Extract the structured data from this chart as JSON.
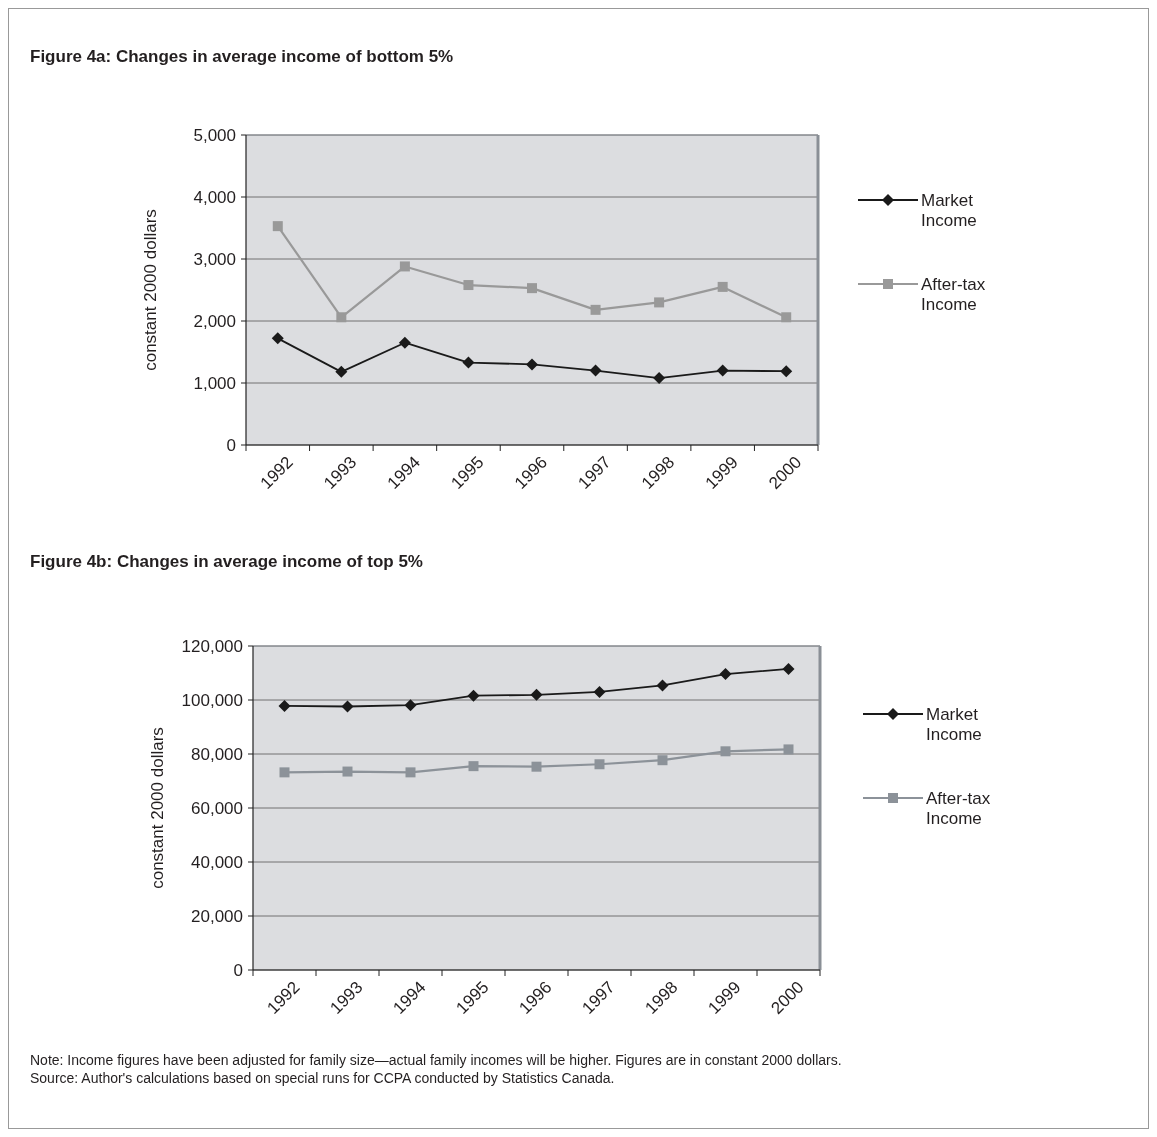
{
  "chart_data": [
    {
      "type": "line",
      "title": "Figure 4a: Changes in average income of bottom 5%",
      "ylabel": "constant 2000 dollars",
      "categories": [
        "1992",
        "1993",
        "1994",
        "1995",
        "1996",
        "1997",
        "1998",
        "1999",
        "2000"
      ],
      "series": [
        {
          "name": "Market Income",
          "color": "#1a1a1a",
          "marker": "diamond",
          "values": [
            1720,
            1180,
            1650,
            1330,
            1300,
            1200,
            1080,
            1200,
            1190
          ]
        },
        {
          "name": "After-tax Income",
          "color": "#999999",
          "marker": "square",
          "values": [
            3530,
            2060,
            2880,
            2580,
            2530,
            2180,
            2300,
            2550,
            2060
          ]
        }
      ],
      "ylim": [
        0,
        5000
      ],
      "yticks": [
        0,
        {
          "value": 1000,
          "label": "1,000"
        },
        {
          "value": 2000,
          "label": "2,000"
        },
        {
          "value": 3000,
          "label": "3,000"
        },
        {
          "value": 4000,
          "label": "4,000"
        },
        {
          "value": 5000,
          "label": "5,000"
        }
      ],
      "grid": "y",
      "legend": "right"
    },
    {
      "type": "line",
      "title": "Figure 4b: Changes in average income of top 5%",
      "ylabel": "constant 2000 dollars",
      "categories": [
        "1992",
        "1993",
        "1994",
        "1995",
        "1996",
        "1997",
        "1998",
        "1999",
        "2000"
      ],
      "series": [
        {
          "name": "Market Income",
          "color": "#1a1a1a",
          "marker": "diamond",
          "values": [
            97800,
            97600,
            98100,
            101600,
            101900,
            103000,
            105400,
            109600,
            111500
          ]
        },
        {
          "name": "After-tax Income",
          "color": "#8c9299",
          "marker": "square",
          "values": [
            73200,
            73500,
            73200,
            75500,
            75300,
            76200,
            77700,
            81000,
            81700
          ]
        }
      ],
      "ylim": [
        0,
        120000
      ],
      "yticks": [
        0,
        {
          "value": 20000,
          "label": "20,000"
        },
        {
          "value": 40000,
          "label": "40,000"
        },
        {
          "value": 60000,
          "label": "60,000"
        },
        {
          "value": 80000,
          "label": "80,000"
        },
        {
          "value": 100000,
          "label": "100,000"
        },
        {
          "value": 120000,
          "label": "120,000"
        }
      ],
      "grid": "y",
      "legend": "right",
      "annotations": [
        "Note: Income figures have been adjusted for family size—actual family incomes will be higher. Figures are in constant 2000 dollars.",
        "Source: Author's calculations based on special runs for CCPA conducted by Statistics Canada."
      ]
    }
  ]
}
